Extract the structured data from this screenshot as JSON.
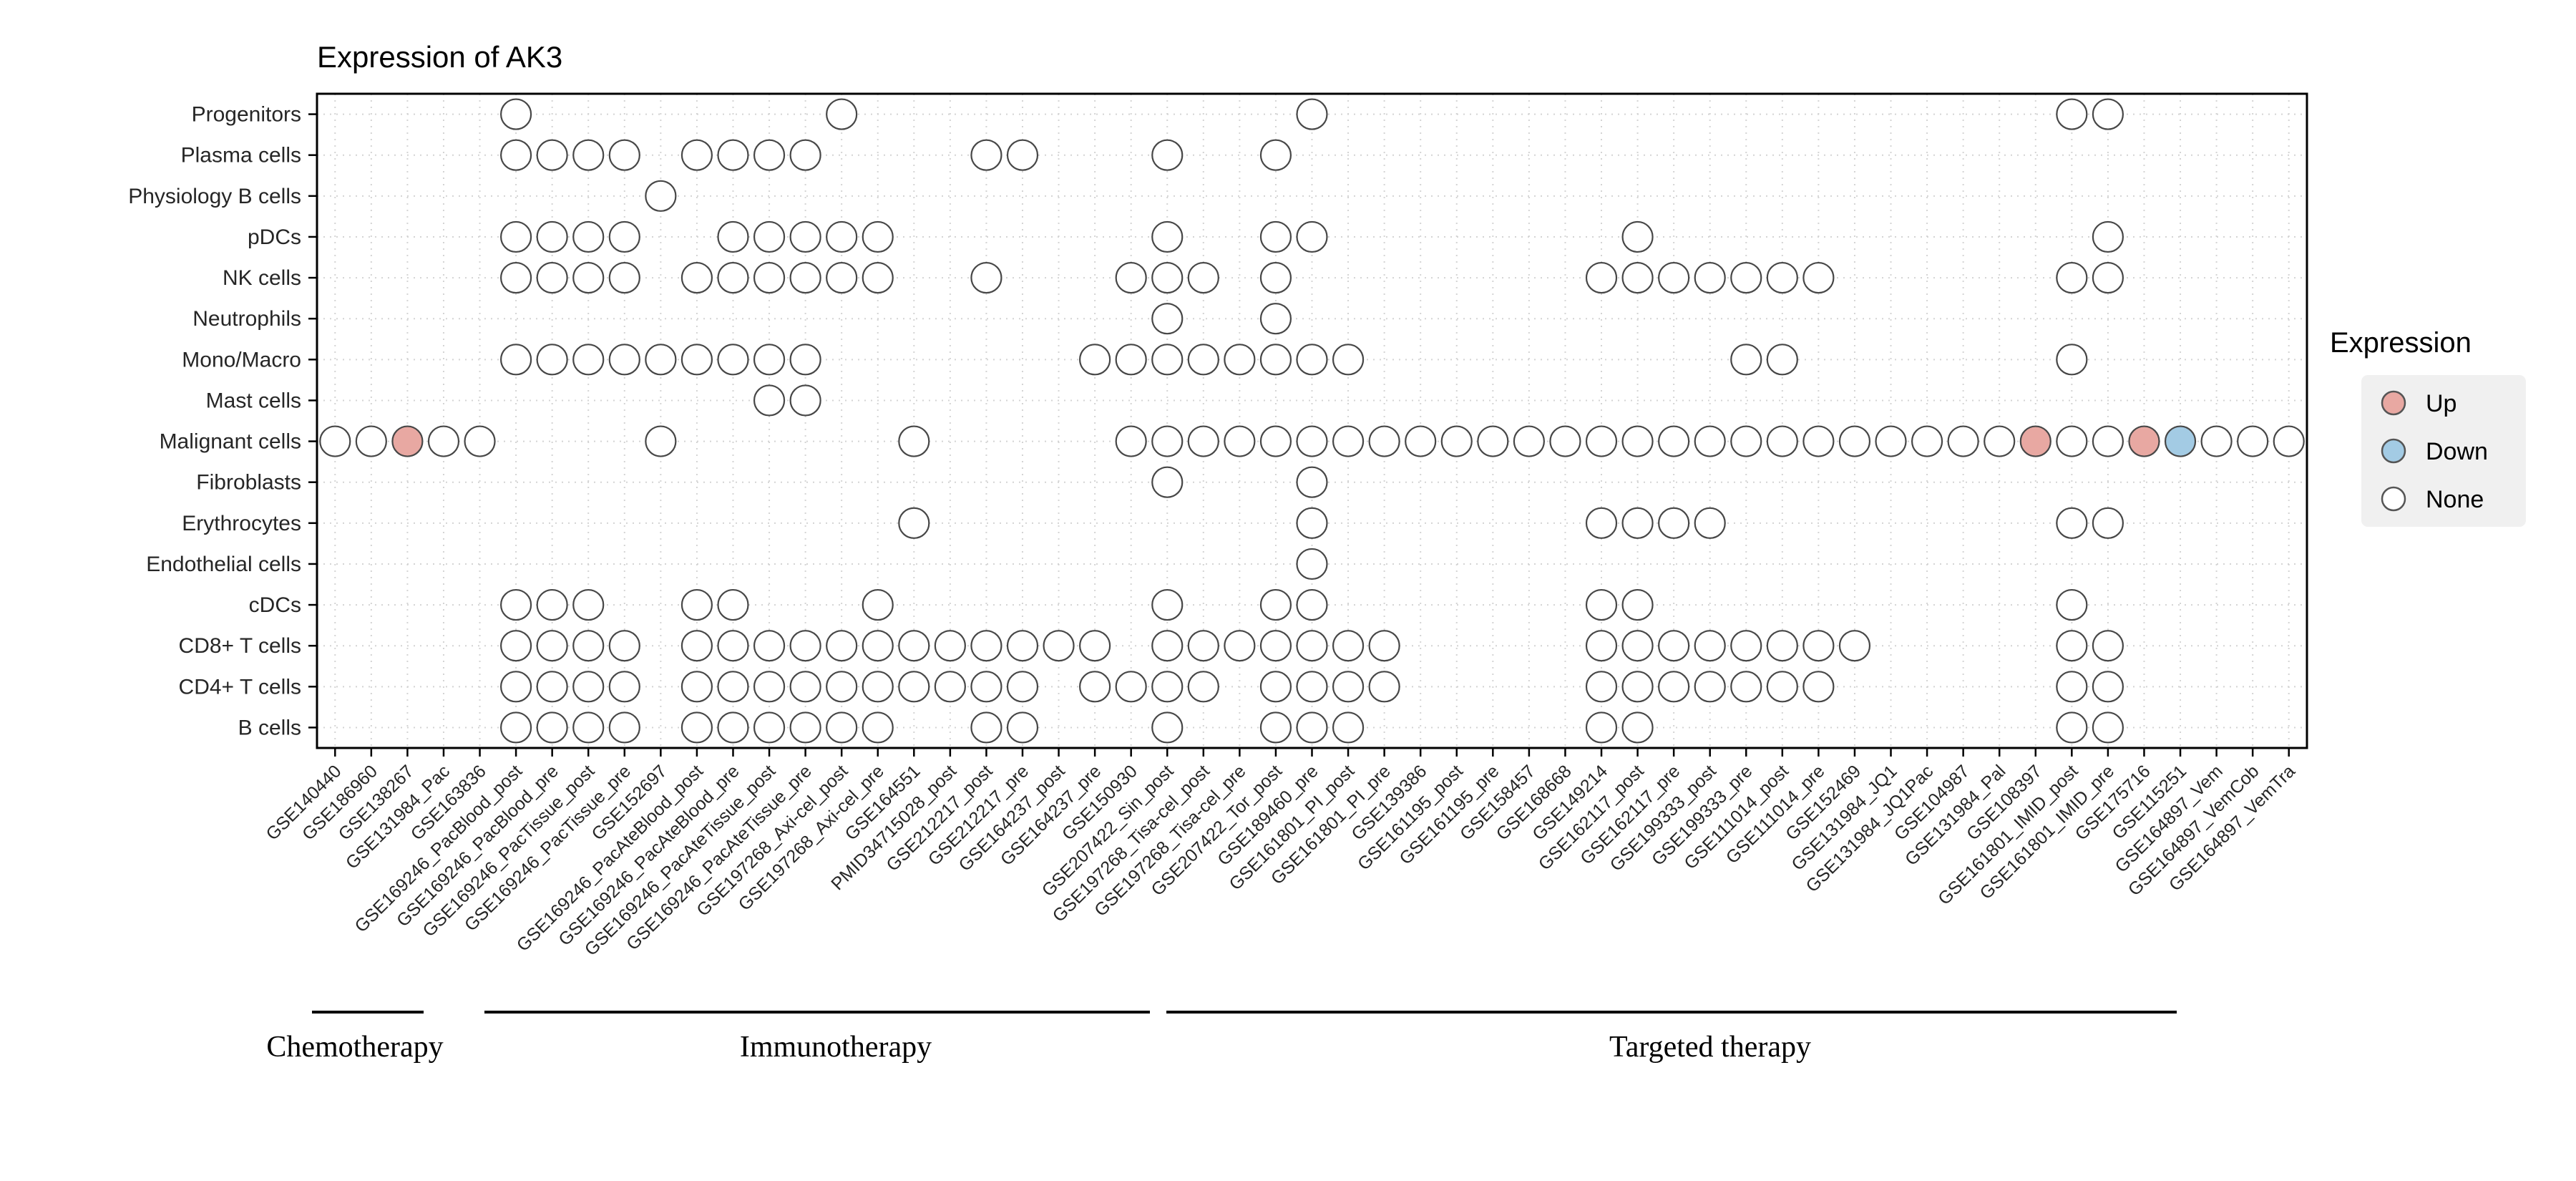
{
  "page": {
    "background": "#ffffff"
  },
  "chart_data": {
    "type": "scatter",
    "title": "Expression of AK3",
    "legend": {
      "title": "Expression",
      "position": "right",
      "entries": [
        {
          "label": "Up",
          "color": "#E8A8A2"
        },
        {
          "label": "Down",
          "color": "#A3CBE4"
        },
        {
          "label": "None",
          "color": "#FFFFFF"
        }
      ]
    },
    "rows": [
      "Progenitors",
      "Plasma cells",
      "Physiology B cells",
      "pDCs",
      "NK cells",
      "Neutrophils",
      "Mono/Macro",
      "Mast cells",
      "Malignant cells",
      "Fibroblasts",
      "Erythrocytes",
      "Endothelial cells",
      "cDCs",
      "CD8+ T cells",
      "CD4+ T cells",
      "B cells"
    ],
    "columns": [
      "GSE140440",
      "GSE186960",
      "GSE138267",
      "GSE131984_Pac",
      "GSE163836",
      "GSE169246_PacBlood_post",
      "GSE169246_PacBlood_pre",
      "GSE169246_PacTissue_post",
      "GSE169246_PacTissue_pre",
      "GSE152697",
      "GSE169246_PacAteBlood_post",
      "GSE169246_PacAteBlood_pre",
      "GSE169246_PacAteTissue_post",
      "GSE169246_PacAteTissue_pre",
      "GSE197268_Axi-cel_post",
      "GSE197268_Axi-cel_pre",
      "GSE164551",
      "PMID34715028_post",
      "GSE212217_post",
      "GSE212217_pre",
      "GSE164237_post",
      "GSE164237_pre",
      "GSE150930",
      "GSE207422_Sin_post",
      "GSE197268_Tisa-cel_post",
      "GSE197268_Tisa-cel_pre",
      "GSE207422_Tor_post",
      "GSE189460_pre",
      "GSE161801_PI_post",
      "GSE161801_PI_pre",
      "GSE139386",
      "GSE161195_post",
      "GSE161195_pre",
      "GSE158457",
      "GSE168668",
      "GSE149214",
      "GSE162117_post",
      "GSE162117_pre",
      "GSE199333_post",
      "GSE199333_pre",
      "GSE111014_post",
      "GSE111014_pre",
      "GSE152469",
      "GSE131984_JQ1",
      "GSE131984_JQ1Pac",
      "GSE104987",
      "GSE131984_Pal",
      "GSE108397",
      "GSE161801_IMID_post",
      "GSE161801_IMID_pre",
      "GSE175716",
      "GSE115251",
      "GSE164897_Vem",
      "GSE164897_VemCob",
      "GSE164897_VemTra"
    ],
    "groups": [
      {
        "label": "Chemotherapy",
        "start": 1,
        "end": 5
      },
      {
        "label": "Immunotherapy",
        "start": 6,
        "end": 23
      },
      {
        "label": "Targeted therapy",
        "start": 24,
        "end": 52
      }
    ],
    "points": {
      "Progenitors": [
        6,
        15,
        28,
        49,
        50
      ],
      "Plasma cells": [
        6,
        7,
        8,
        9,
        11,
        12,
        13,
        14,
        19,
        20,
        24,
        27
      ],
      "Physiology B cells": [
        10
      ],
      "pDCs": [
        6,
        7,
        8,
        9,
        12,
        13,
        14,
        15,
        16,
        24,
        27,
        28,
        37,
        50
      ],
      "NK cells": [
        6,
        7,
        8,
        9,
        11,
        12,
        13,
        14,
        15,
        16,
        19,
        23,
        24,
        25,
        27,
        36,
        37,
        38,
        39,
        40,
        41,
        42,
        49,
        50
      ],
      "Neutrophils": [
        24,
        27
      ],
      "Mono/Macro": [
        6,
        7,
        8,
        9,
        10,
        11,
        12,
        13,
        14,
        22,
        23,
        24,
        25,
        26,
        27,
        28,
        29,
        40,
        41,
        49
      ],
      "Mast cells": [
        13,
        14
      ],
      "Malignant cells": [
        1,
        2,
        3,
        4,
        5,
        10,
        17,
        23,
        24,
        25,
        26,
        27,
        28,
        29,
        30,
        31,
        32,
        33,
        34,
        35,
        36,
        37,
        38,
        39,
        40,
        41,
        42,
        43,
        44,
        45,
        46,
        47,
        48,
        49,
        50,
        51,
        52,
        53,
        54,
        55
      ],
      "Fibroblasts": [
        24,
        28
      ],
      "Erythrocytes": [
        17,
        28,
        36,
        37,
        38,
        39,
        49,
        50
      ],
      "Endothelial cells": [
        28
      ],
      "cDCs": [
        6,
        7,
        8,
        11,
        12,
        16,
        24,
        27,
        28,
        36,
        37,
        49
      ],
      "CD8+ T cells": [
        6,
        7,
        8,
        9,
        11,
        12,
        13,
        14,
        15,
        16,
        17,
        18,
        19,
        20,
        21,
        22,
        24,
        25,
        26,
        27,
        28,
        29,
        30,
        36,
        37,
        38,
        39,
        40,
        41,
        42,
        43,
        49,
        50
      ],
      "CD4+ T cells": [
        6,
        7,
        8,
        9,
        11,
        12,
        13,
        14,
        15,
        16,
        17,
        18,
        19,
        20,
        22,
        23,
        24,
        25,
        27,
        28,
        29,
        30,
        36,
        37,
        38,
        39,
        40,
        41,
        42,
        49,
        50
      ],
      "B cells": [
        6,
        7,
        8,
        9,
        11,
        12,
        13,
        14,
        15,
        16,
        19,
        20,
        24,
        27,
        28,
        29,
        36,
        37,
        49,
        50
      ]
    },
    "colored_points": [
      {
        "row": "Malignant cells",
        "column": "GSE138267",
        "expression": "Up"
      },
      {
        "row": "Malignant cells",
        "column": "GSE108397",
        "expression": "Up"
      },
      {
        "row": "Malignant cells",
        "column": "GSE175716",
        "expression": "Up"
      },
      {
        "row": "Malignant cells",
        "column": "GSE115251",
        "expression": "Down"
      }
    ],
    "style": {
      "dot_outline": "#474747",
      "grid_color": "#D4D4D4",
      "axis_color": "#000000",
      "tick_label_color": "#262626",
      "legend_box_color": "#F0F0F0"
    }
  }
}
